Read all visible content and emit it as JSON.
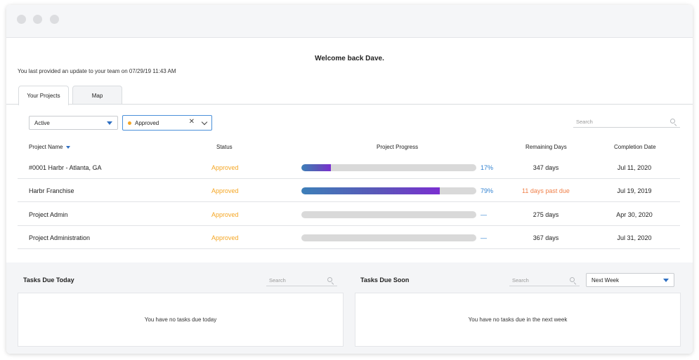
{
  "header": {
    "welcome": "Welcome back Dave.",
    "last_update": "You last provided an update to your team on 07/29/19 11:43 AM"
  },
  "tabs": [
    {
      "label": "Your Projects",
      "active": true
    },
    {
      "label": "Map",
      "active": false
    }
  ],
  "filters": {
    "status_value": "Active",
    "approval_value": "Approved",
    "search_placeholder": "Search"
  },
  "table": {
    "headers": {
      "name": "Project Name",
      "status": "Status",
      "progress": "Project Progress",
      "remaining": "Remaining Days",
      "completion": "Completion Date"
    },
    "rows": [
      {
        "name": "#0001 Harbr - Atlanta, GA",
        "status": "Approved",
        "progress": 0.17,
        "progress_label": "17%",
        "remaining": "347 days",
        "completion": "Jul 11, 2020"
      },
      {
        "name": "Harbr Franchise",
        "status": "Approved",
        "progress": 0.79,
        "progress_label": "79%",
        "remaining": "11 days past due",
        "completion": "Jul 19, 2019"
      },
      {
        "name": "Project Admin",
        "status": "Approved",
        "progress": 0,
        "progress_label": "—",
        "remaining": "275 days",
        "completion": "Apr 30, 2020"
      },
      {
        "name": "Project Administration",
        "status": "Approved",
        "progress": 0,
        "progress_label": "—",
        "remaining": "367 days",
        "completion": "Jul 31, 2020"
      }
    ]
  },
  "tasks_today": {
    "title": "Tasks Due Today",
    "search_placeholder": "Search",
    "empty_message": "You have no tasks due today"
  },
  "tasks_soon": {
    "title": "Tasks Due Soon",
    "search_placeholder": "Search",
    "range_value": "Next Week",
    "empty_message": "You have no tasks due in the next week"
  },
  "colors": {
    "status_approved": "#f5a623",
    "progress_pct": "#2f80d0",
    "past_due": "#f0804a",
    "accent": "#2f6fc2"
  },
  "icons": [
    "search-icon",
    "caret-down-icon",
    "close-icon",
    "chevron-down-icon"
  ]
}
